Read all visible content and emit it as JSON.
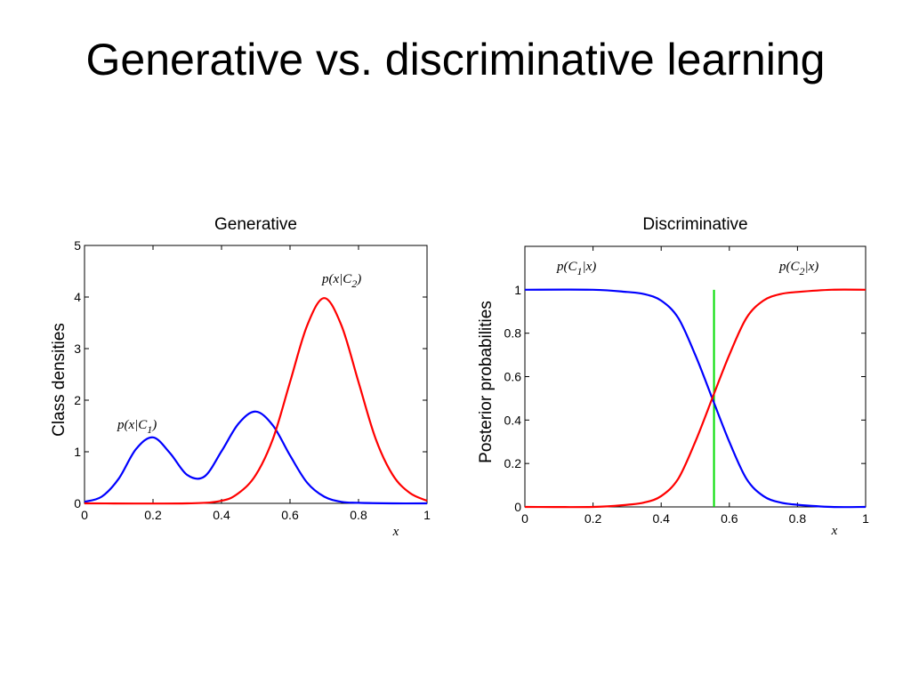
{
  "slide": {
    "title": "Generative vs. discriminative learning"
  },
  "chart_data": [
    {
      "type": "line",
      "title": "Generative",
      "xlabel": "x",
      "ylabel": "Class densities",
      "xlim": [
        0,
        1
      ],
      "ylim": [
        0,
        5
      ],
      "xticks": [
        "0",
        "0.2",
        "0.4",
        "0.6",
        "0.8",
        "1"
      ],
      "yticks": [
        "0",
        "1",
        "2",
        "3",
        "4",
        "5"
      ],
      "grid": false,
      "series": [
        {
          "name": "p(x|C1)",
          "label_main": "p(x|C",
          "label_sub": "1",
          "label_end": ")",
          "color": "#0000ff",
          "x": [
            0,
            0.05,
            0.1,
            0.15,
            0.2,
            0.25,
            0.3,
            0.35,
            0.4,
            0.45,
            0.5,
            0.55,
            0.6,
            0.65,
            0.7,
            0.75,
            0.8,
            0.9,
            1
          ],
          "y": [
            0.03,
            0.13,
            0.48,
            1.05,
            1.28,
            0.97,
            0.55,
            0.52,
            1.01,
            1.55,
            1.78,
            1.51,
            0.93,
            0.4,
            0.13,
            0.03,
            0.01,
            0,
            0
          ]
        },
        {
          "name": "p(x|C2)",
          "label_main": "p(x|C",
          "label_sub": "2",
          "label_end": ")",
          "color": "#ff0000",
          "x": [
            0,
            0.3,
            0.4,
            0.45,
            0.5,
            0.55,
            0.6,
            0.65,
            0.7,
            0.75,
            0.8,
            0.85,
            0.9,
            0.95,
            1
          ],
          "y": [
            0,
            0,
            0.05,
            0.2,
            0.55,
            1.25,
            2.35,
            3.45,
            3.98,
            3.45,
            2.35,
            1.25,
            0.55,
            0.2,
            0.05
          ]
        }
      ]
    },
    {
      "type": "line",
      "title": "Discriminative",
      "xlabel": "x",
      "ylabel": "Posterior probabilities",
      "xlim": [
        0,
        1
      ],
      "ylim": [
        0,
        1.2
      ],
      "xticks": [
        "0",
        "0.2",
        "0.4",
        "0.6",
        "0.8",
        "1"
      ],
      "yticks": [
        "0",
        "0.2",
        "0.4",
        "0.6",
        "0.8",
        "1"
      ],
      "grid": false,
      "series": [
        {
          "name": "p(C1|x)",
          "label_main": "p(C",
          "label_sub": "1",
          "label_end": "|x)",
          "color": "#0000ff",
          "x": [
            0,
            0.2,
            0.3,
            0.35,
            0.4,
            0.45,
            0.5,
            0.55,
            0.6,
            0.65,
            0.7,
            0.75,
            0.8,
            0.9,
            1
          ],
          "y": [
            1,
            1,
            0.99,
            0.98,
            0.95,
            0.87,
            0.7,
            0.5,
            0.3,
            0.13,
            0.05,
            0.02,
            0.01,
            0,
            0
          ]
        },
        {
          "name": "p(C2|x)",
          "label_main": "p(C",
          "label_sub": "2",
          "label_end": "|x)",
          "color": "#ff0000",
          "x": [
            0,
            0.2,
            0.3,
            0.35,
            0.4,
            0.45,
            0.5,
            0.55,
            0.6,
            0.65,
            0.7,
            0.75,
            0.8,
            0.9,
            1
          ],
          "y": [
            0,
            0,
            0.01,
            0.02,
            0.05,
            0.13,
            0.3,
            0.5,
            0.7,
            0.87,
            0.95,
            0.98,
            0.99,
            1,
            1
          ]
        }
      ],
      "decision_boundary": {
        "x": 0.555,
        "y_range": [
          0,
          1
        ],
        "color": "#00dd00"
      }
    }
  ]
}
